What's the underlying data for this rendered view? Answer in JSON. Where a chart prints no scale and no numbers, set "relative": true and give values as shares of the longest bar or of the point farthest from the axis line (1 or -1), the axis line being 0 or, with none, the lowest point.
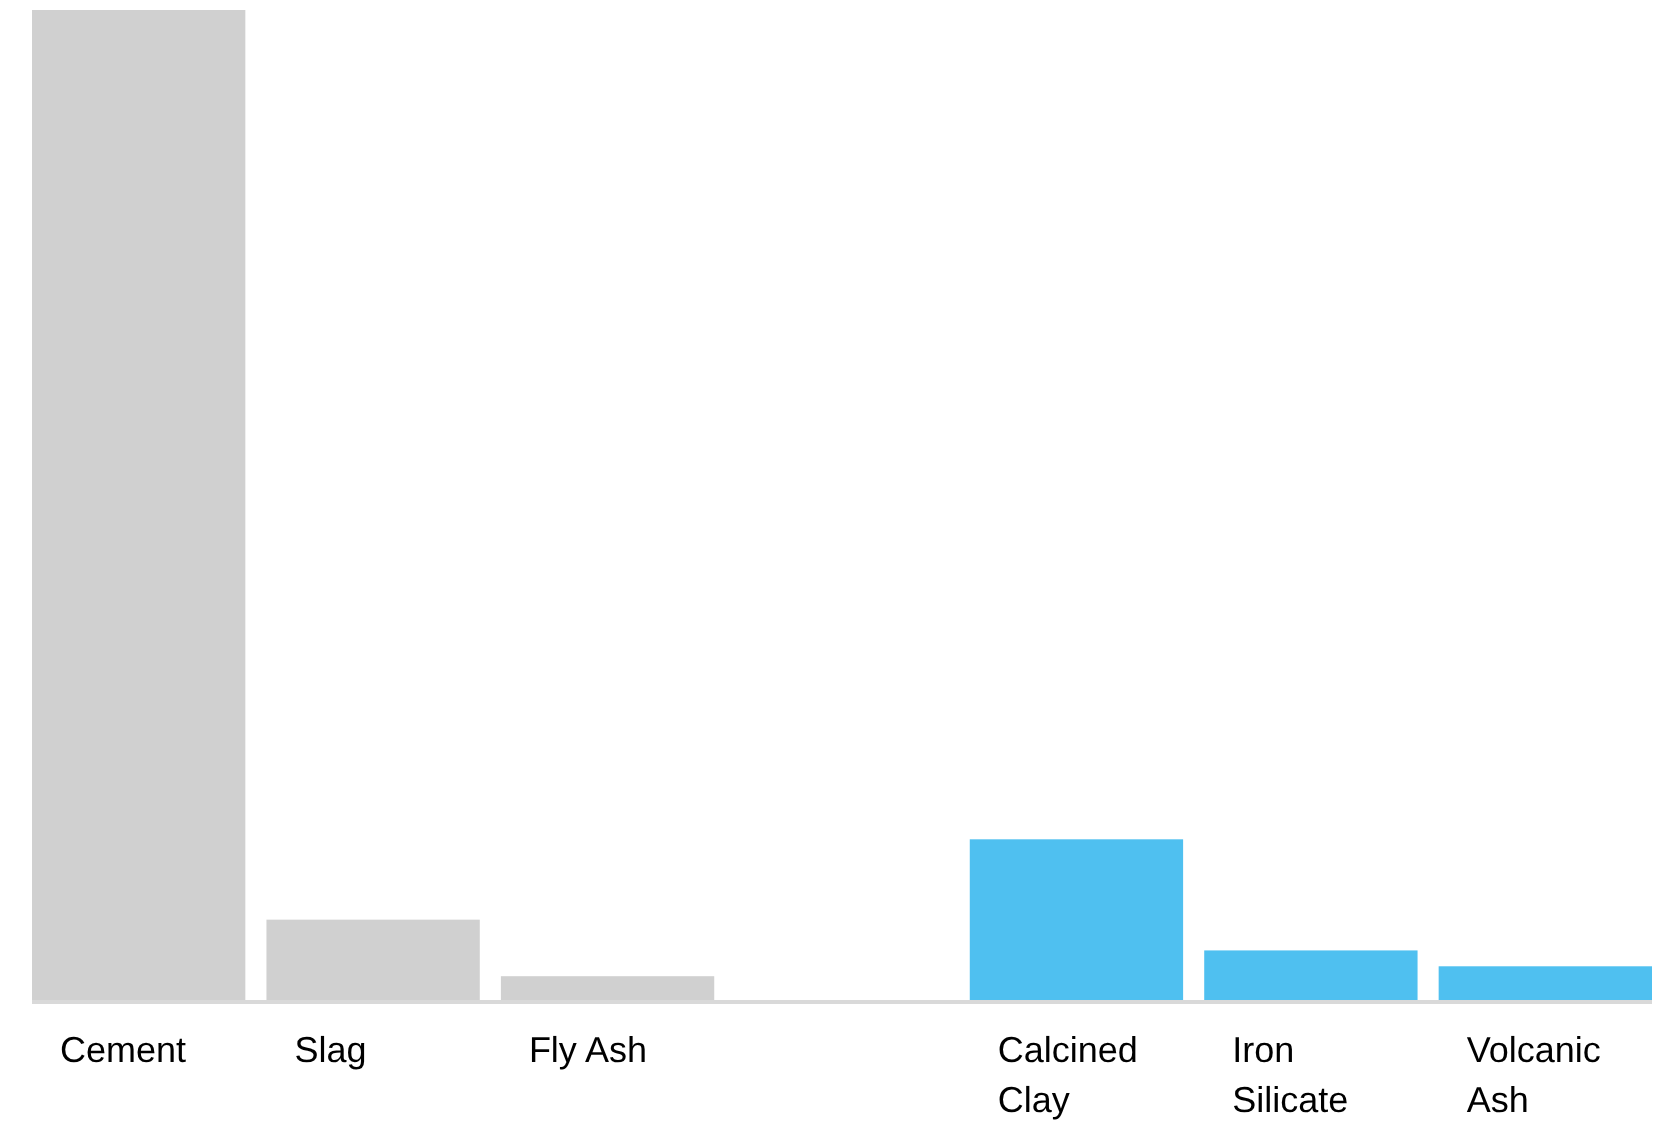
{
  "chart_data": {
    "type": "bar",
    "relative": true,
    "categories": [
      "Cement",
      "Slag",
      "Fly Ash",
      null,
      "Calcined Clay",
      "Iron Silicate",
      "Volcanic Ash"
    ],
    "values": [
      1,
      0.083,
      0.026,
      null,
      0.164,
      0.052,
      0.036
    ],
    "colors": [
      "#d0d0d0",
      "#d0d0d0",
      "#d0d0d0",
      null,
      "#4fc0f0",
      "#4fc0f0",
      "#4fc0f0"
    ],
    "tick_labels": "x"
  }
}
